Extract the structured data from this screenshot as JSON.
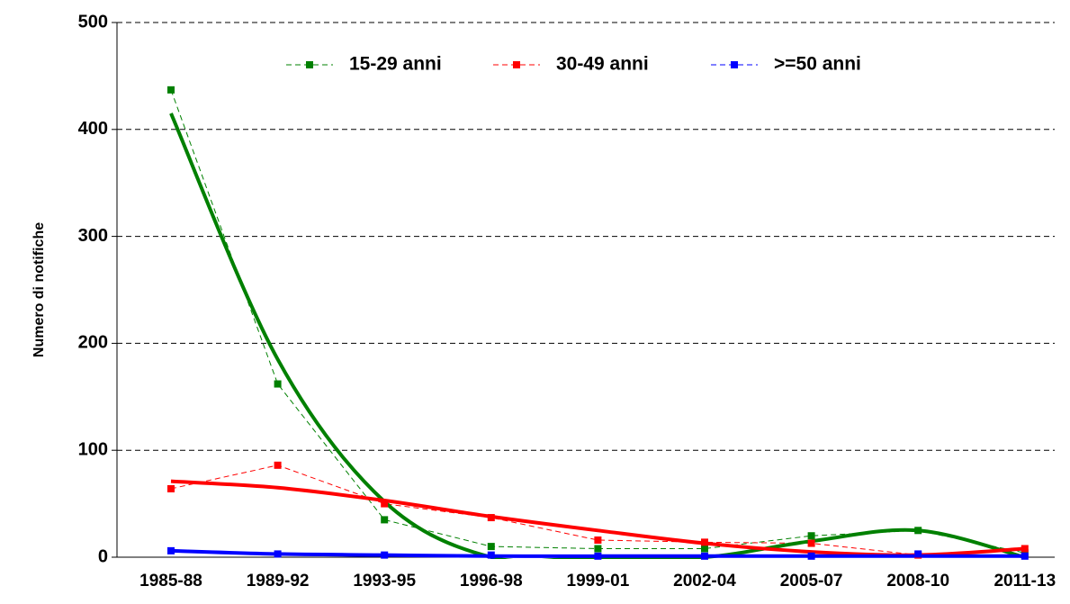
{
  "chart_data": {
    "type": "line",
    "y_label": "Numero di notifiche",
    "categories": [
      "1985-88",
      "1989-92",
      "1993-95",
      "1996-98",
      "1999-01",
      "2002-04",
      "2005-07",
      "2008-10",
      "2011-13"
    ],
    "series": [
      {
        "name": "15-29 anni",
        "color": "#008000",
        "values": [
          437,
          162,
          35,
          10,
          8,
          8,
          20,
          25,
          4
        ]
      },
      {
        "name": "30-49 anni",
        "color": "#ff0000",
        "values": [
          64,
          86,
          50,
          37,
          16,
          14,
          13,
          2,
          8
        ]
      },
      {
        "name": ">=50 anni",
        "color": "#0000ff",
        "values": [
          6,
          3,
          2,
          2,
          1,
          1,
          1,
          3,
          1
        ]
      }
    ],
    "trends": [
      {
        "color": "#008000",
        "values": [
          415,
          185,
          52,
          0,
          0,
          0,
          15,
          25,
          0
        ]
      },
      {
        "color": "#ff0000",
        "values": [
          71,
          65,
          53,
          38,
          25,
          13,
          5,
          2,
          8
        ]
      },
      {
        "color": "#0000ff",
        "values": [
          6,
          3,
          2,
          1,
          1,
          1,
          1,
          1,
          1
        ]
      }
    ],
    "ylim": [
      0,
      500
    ],
    "yticks": [
      0,
      100,
      200,
      300,
      400,
      500
    ],
    "grid": true
  }
}
